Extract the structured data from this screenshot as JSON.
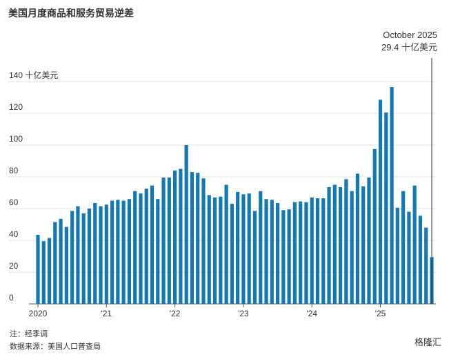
{
  "chart_data": {
    "type": "bar",
    "title": "美国月度商品和服务贸易逆差",
    "annotation": [
      "October 2025",
      "29.4 十亿美元"
    ],
    "notes": [
      "注：经季调",
      "数据来源：美国人口普查局"
    ],
    "watermark": "格隆汇",
    "color": "#1479b3",
    "grid": true,
    "categories": [
      "2020",
      null,
      null,
      null,
      null,
      null,
      null,
      null,
      null,
      null,
      null,
      null,
      "'21",
      null,
      null,
      null,
      null,
      null,
      null,
      null,
      null,
      null,
      null,
      null,
      "'22",
      null,
      null,
      null,
      null,
      null,
      null,
      null,
      null,
      null,
      null,
      null,
      "'23",
      null,
      null,
      null,
      null,
      null,
      null,
      null,
      null,
      null,
      null,
      null,
      "'24",
      null,
      null,
      null,
      null,
      null,
      null,
      null,
      null,
      null,
      null,
      null,
      "'25",
      null,
      null,
      null,
      null,
      null,
      null,
      null,
      null,
      null
    ],
    "values": [
      43.5,
      39.5,
      41.5,
      51.5,
      53.5,
      48.5,
      58.5,
      61.5,
      57,
      60,
      63.5,
      61.5,
      62.5,
      65,
      65.5,
      65,
      66,
      71,
      69.5,
      72.5,
      74.5,
      66,
      79.5,
      79.5,
      84,
      85,
      100,
      83,
      82.5,
      79,
      68.5,
      67,
      67.5,
      75,
      63,
      70.5,
      69,
      69.5,
      58.5,
      71,
      66,
      65.5,
      63.5,
      59,
      59.5,
      64,
      64.5,
      64,
      67,
      66.5,
      66.5,
      73.5,
      75,
      73.5,
      78.5,
      71,
      82,
      74,
      79.5,
      97.5,
      128.5,
      120.5,
      136.5,
      60.5,
      71,
      58,
      74.5,
      55.5,
      48,
      29.4
    ],
    "ylim": [
      0,
      140
    ],
    "yticks": [
      0,
      20,
      40,
      60,
      80,
      100,
      120,
      {
        "value": 140,
        "label": "140 十亿美元"
      }
    ]
  }
}
